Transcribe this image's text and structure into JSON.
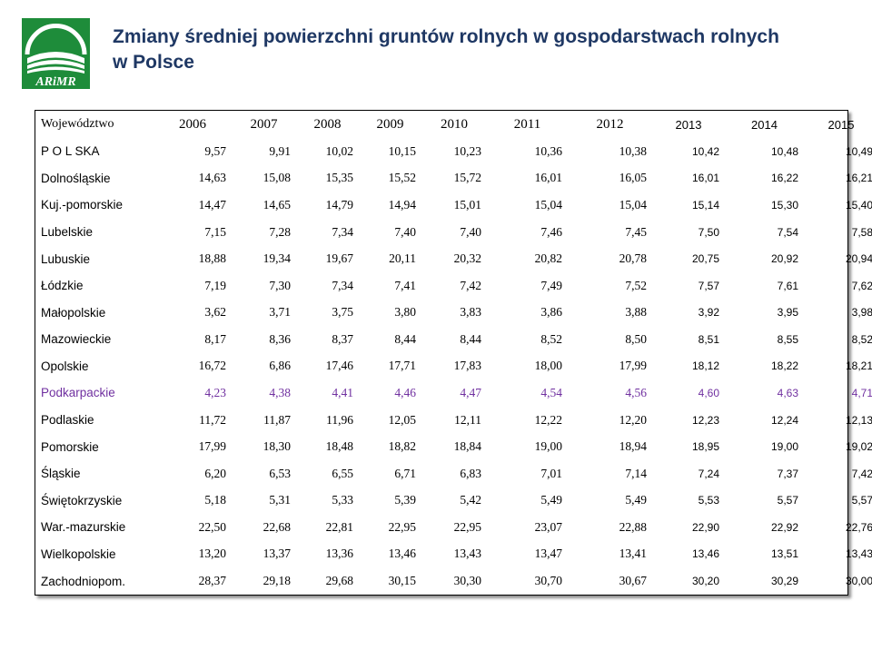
{
  "title_line1": "Zmiany średniej powierzchni gruntów rolnych  w gospodarstwach rolnych",
  "title_line2": "w Polsce",
  "logo": {
    "text": "ARiMR",
    "green": "#1e8c3a",
    "icon": "agency-logo-icon"
  },
  "highlight_color": "#7030a0",
  "table": {
    "corner_label": "Województwo",
    "years": [
      "2006",
      "2007",
      "2008",
      "2009",
      "2010",
      "2011",
      "2012",
      "2013",
      "2014",
      "2015"
    ],
    "rows": [
      {
        "region": "P O L SKA",
        "values": [
          "9,57",
          "9,91",
          "10,02",
          "10,15",
          "10,23",
          "10,36",
          "10,38",
          "10,42",
          "10,48",
          "10,49"
        ]
      },
      {
        "region": "Dolnośląskie",
        "values": [
          "14,63",
          "15,08",
          "15,35",
          "15,52",
          "15,72",
          "16,01",
          "16,05",
          "16,01",
          "16,22",
          "16,21"
        ]
      },
      {
        "region": "Kuj.-pomorskie",
        "values": [
          "14,47",
          "14,65",
          "14,79",
          "14,94",
          "15,01",
          "15,04",
          "15,04",
          "15,14",
          "15,30",
          "15,40"
        ]
      },
      {
        "region": "Lubelskie",
        "values": [
          "7,15",
          "7,28",
          "7,34",
          "7,40",
          "7,40",
          "7,46",
          "7,45",
          "7,50",
          "7,54",
          "7,58"
        ]
      },
      {
        "region": "Lubuskie",
        "values": [
          "18,88",
          "19,34",
          "19,67",
          "20,11",
          "20,32",
          "20,82",
          "20,78",
          "20,75",
          "20,92",
          "20,94"
        ]
      },
      {
        "region": "Łódzkie",
        "values": [
          "7,19",
          "7,30",
          "7,34",
          "7,41",
          "7,42",
          "7,49",
          "7,52",
          "7,57",
          "7,61",
          "7,62"
        ]
      },
      {
        "region": "Małopolskie",
        "values": [
          "3,62",
          "3,71",
          "3,75",
          "3,80",
          "3,83",
          "3,86",
          "3,88",
          "3,92",
          "3,95",
          "3,98"
        ]
      },
      {
        "region": "Mazowieckie",
        "values": [
          "8,17",
          "8,36",
          "8,37",
          "8,44",
          "8,44",
          "8,52",
          "8,50",
          "8,51",
          "8,55",
          "8,52"
        ]
      },
      {
        "region": "Opolskie",
        "values": [
          "16,72",
          "6,86",
          "17,46",
          "17,71",
          "17,83",
          "18,00",
          "17,99",
          "18,12",
          "18,22",
          "18,21"
        ]
      },
      {
        "region": "Podkarpackie",
        "highlight": true,
        "values": [
          "4,23",
          "4,38",
          "4,41",
          "4,46",
          "4,47",
          "4,54",
          "4,56",
          "4,60",
          "4,63",
          "4,71"
        ]
      },
      {
        "region": "Podlaskie",
        "values": [
          "11,72",
          "11,87",
          "11,96",
          "12,05",
          "12,11",
          "12,22",
          "12,20",
          "12,23",
          "12,24",
          "12,13"
        ]
      },
      {
        "region": "Pomorskie",
        "values": [
          "17,99",
          "18,30",
          "18,48",
          "18,82",
          "18,84",
          "19,00",
          "18,94",
          "18,95",
          "19,00",
          "19,02"
        ]
      },
      {
        "region": "Śląskie",
        "values": [
          "6,20",
          "6,53",
          "6,55",
          "6,71",
          "6,83",
          "7,01",
          "7,14",
          "7,24",
          "7,37",
          "7,42"
        ]
      },
      {
        "region": "Świętokrzyskie",
        "values": [
          "5,18",
          "5,31",
          "5,33",
          "5,39",
          "5,42",
          "5,49",
          "5,49",
          "5,53",
          "5,57",
          "5,57"
        ]
      },
      {
        "region": "War.-mazurskie",
        "values": [
          "22,50",
          "22,68",
          "22,81",
          "22,95",
          "22,95",
          "23,07",
          "22,88",
          "22,90",
          "22,92",
          "22,76"
        ]
      },
      {
        "region": "Wielkopolskie",
        "values": [
          "13,20",
          "13,37",
          "13,36",
          "13,46",
          "13,43",
          "13,47",
          "13,41",
          "13,46",
          "13,51",
          "13,43"
        ]
      },
      {
        "region": "Zachodniopom.",
        "values": [
          "28,37",
          "29,18",
          "29,68",
          "30,15",
          "30,30",
          "30,70",
          "30,67",
          "30,20",
          "30,29",
          "30,00"
        ]
      }
    ]
  }
}
